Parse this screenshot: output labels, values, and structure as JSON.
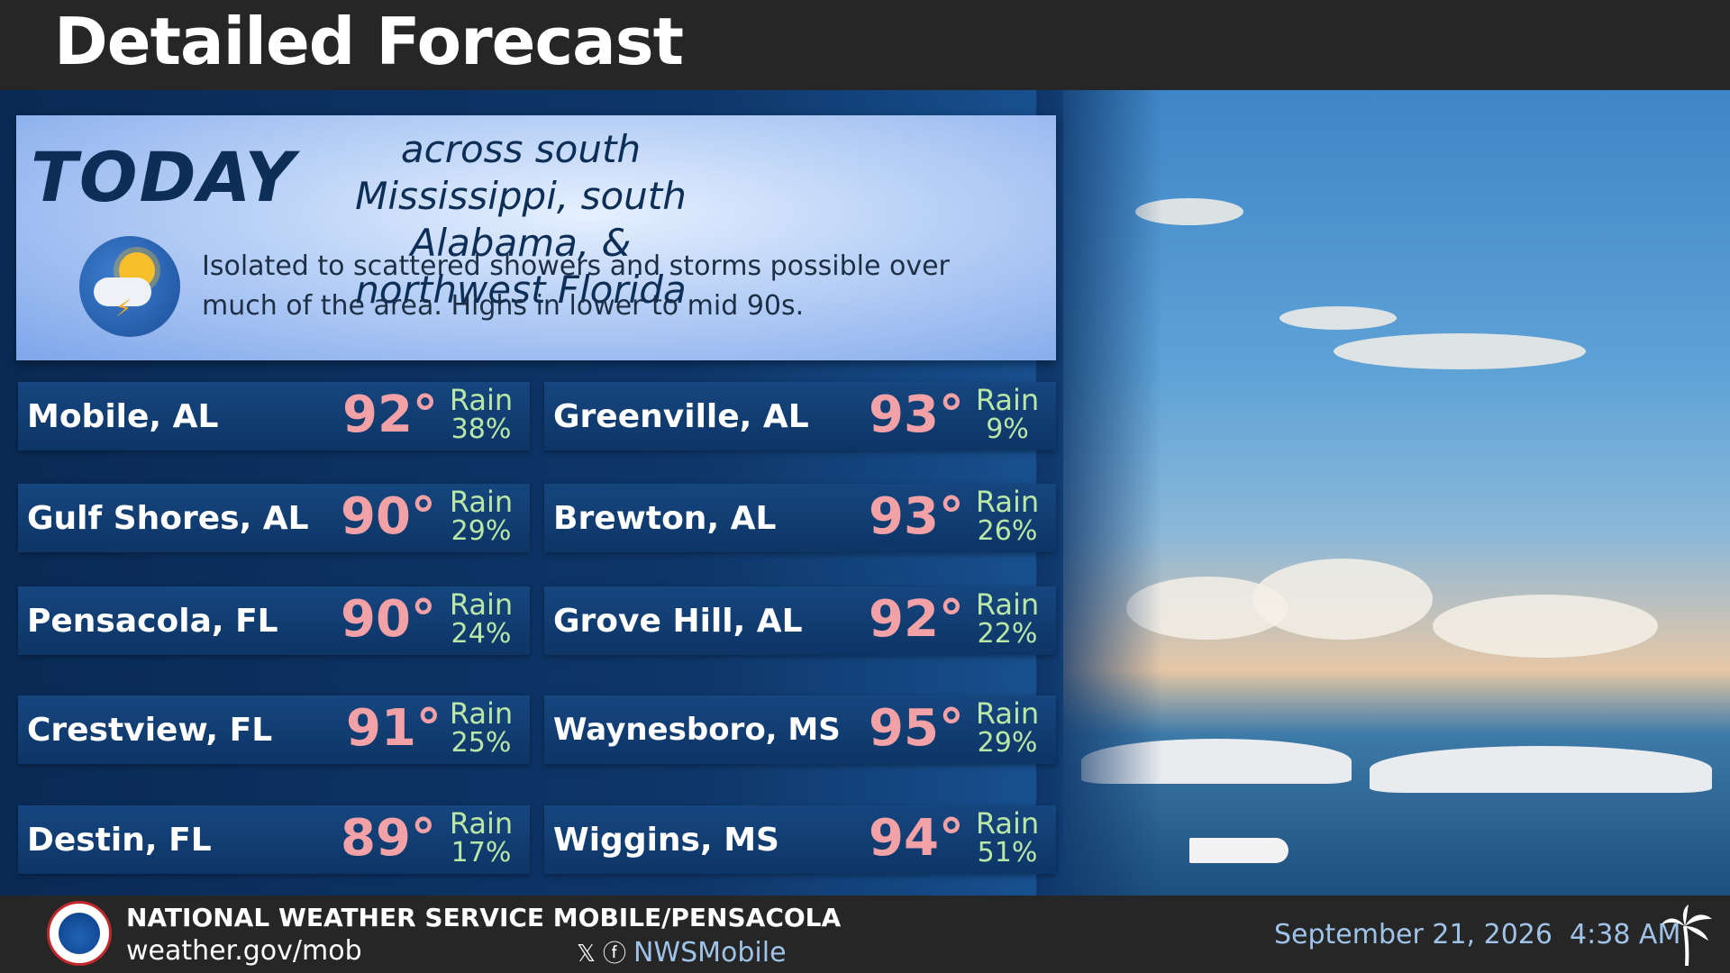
{
  "header": {
    "title": "Detailed Forecast"
  },
  "today": {
    "label": "TODAY",
    "region": "across south Mississippi, south Alabama, & northwest Florida",
    "icon": "sun-cloud-storm-icon",
    "description": "Isolated to scattered showers and storms possible over much of the area. Highs in lower to mid 90s."
  },
  "forecasts": [
    {
      "city": "Mobile, AL",
      "temp": "92°",
      "rain_label": "Rain",
      "rain": "38%"
    },
    {
      "city": "Greenville, AL",
      "temp": "93°",
      "rain_label": "Rain",
      "rain": "9%"
    },
    {
      "city": "Gulf Shores, AL",
      "temp": "90°",
      "rain_label": "Rain",
      "rain": "29%"
    },
    {
      "city": "Brewton, AL",
      "temp": "93°",
      "rain_label": "Rain",
      "rain": "26%"
    },
    {
      "city": "Pensacola, FL",
      "temp": "90°",
      "rain_label": "Rain",
      "rain": "24%"
    },
    {
      "city": "Grove Hill, AL",
      "temp": "92°",
      "rain_label": "Rain",
      "rain": "22%"
    },
    {
      "city": "Crestview, FL",
      "temp": "91°",
      "rain_label": "Rain",
      "rain": "25%"
    },
    {
      "city": "Waynesboro, MS",
      "temp": "95°",
      "rain_label": "Rain",
      "rain": "29%"
    },
    {
      "city": "Destin, FL",
      "temp": "89°",
      "rain_label": "Rain",
      "rain": "17%"
    },
    {
      "city": "Wiggins, MS",
      "temp": "94°",
      "rain_label": "Rain",
      "rain": "51%"
    }
  ],
  "footer": {
    "org": "NATIONAL WEATHER SERVICE MOBILE/PENSACOLA",
    "url": "weather.gov/mob",
    "social_icons": "x-icon facebook-icon",
    "social_handle": "NWSMobile",
    "date": "September 21, 2026",
    "time": "4:38 AM"
  },
  "colors": {
    "temp": "#f2a2a6",
    "rain": "#b9e7a6",
    "panel_text": "#0c2e57"
  }
}
